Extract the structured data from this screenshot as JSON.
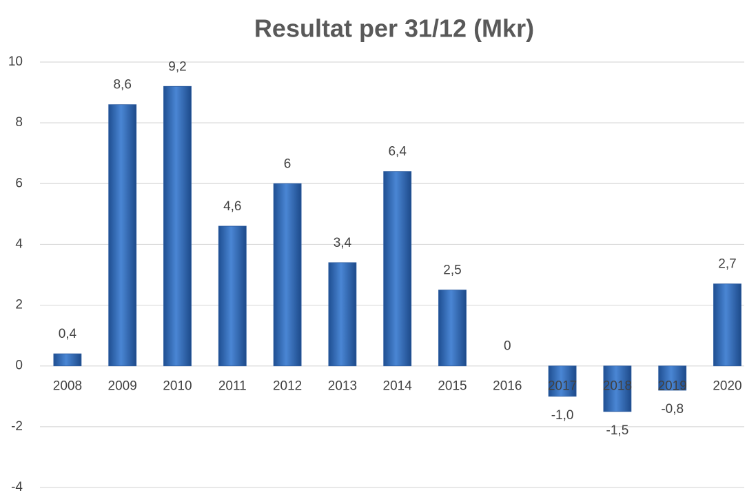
{
  "chart_data": {
    "type": "bar",
    "title": "Resultat per 31/12 (Mkr)",
    "categories": [
      "2008",
      "2009",
      "2010",
      "2011",
      "2012",
      "2013",
      "2014",
      "2015",
      "2016",
      "2017",
      "2018",
      "2019",
      "2020"
    ],
    "values": [
      0.4,
      8.6,
      9.2,
      4.6,
      6,
      3.4,
      6.4,
      2.5,
      0,
      -1.0,
      -1.5,
      -0.8,
      2.7
    ],
    "value_labels": [
      "0,4",
      "8,6",
      "9,2",
      "4,6",
      "6",
      "3,4",
      "6,4",
      "2,5",
      "0",
      "-1,0",
      "-1,5",
      "-0,8",
      "2,7"
    ],
    "color": "#3a73c0",
    "ylim": [
      -4,
      10
    ],
    "yticks": [
      -4,
      -2,
      0,
      2,
      4,
      6,
      8,
      10
    ],
    "grid": true
  }
}
